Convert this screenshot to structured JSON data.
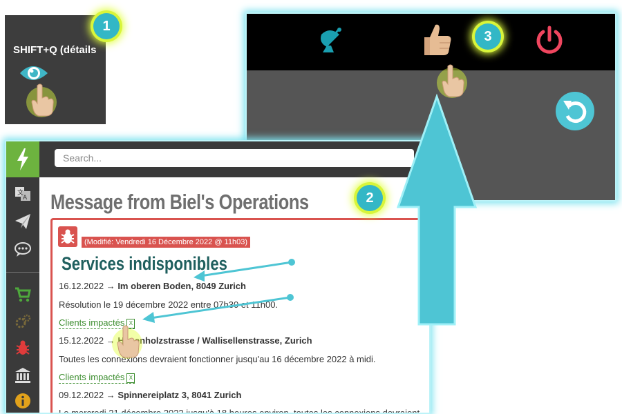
{
  "panel1": {
    "shortcut_label": "SHIFT+Q (détails"
  },
  "badges": {
    "one": "1",
    "two": "2",
    "three": "3"
  },
  "panel3": {
    "icons": [
      "satellite-dish-icon",
      "thumbs-up-icon",
      "power-icon",
      "undo-icon"
    ]
  },
  "panel2": {
    "search_placeholder": "Search...",
    "sidebar_icons": [
      "bolt-icon",
      "translate-icon",
      "send-icon",
      "chat-icon",
      "cart-icon",
      "gears-icon",
      "bug-icon",
      "bank-icon",
      "info-icon"
    ],
    "page_title": "Message from Biel's Operations",
    "card": {
      "modified": "(Modifié: Vendredi 16 Décembre 2022 @ 11h03)",
      "section_title": "Services indisponibles",
      "entries": [
        {
          "date": "16.12.2022 →",
          "place": "Im oberen Boden, 8049 Zurich"
        },
        {
          "text": "Résolution le 19 décembre 2022 entre 07h30 et 11h00."
        },
        {
          "link": "Clients impactés"
        },
        {
          "date": "15.12.2022 →",
          "place": "Hagenholzstrasse / Wallisellenstrasse, Zurich"
        },
        {
          "text": "Toutes les connexions devraient fonctionner jusqu'au 16 décembre 2022 à midi."
        },
        {
          "link": "Clients impactés"
        },
        {
          "date": "09.12.2022 →",
          "place": "Spinnereiplatz 3, 8041 Zurich"
        },
        {
          "text": "Le mercredi 21 décembre 2022 jusqu'à 18 heures environ, toutes les connexions devraient"
        }
      ]
    }
  },
  "colors": {
    "accent_cyan": "#33b7c6",
    "highlight_yellow": "#e2ff3e",
    "brand_green": "#6db33f",
    "alert_red": "#d9534f",
    "title_teal": "#1f5f5e"
  }
}
